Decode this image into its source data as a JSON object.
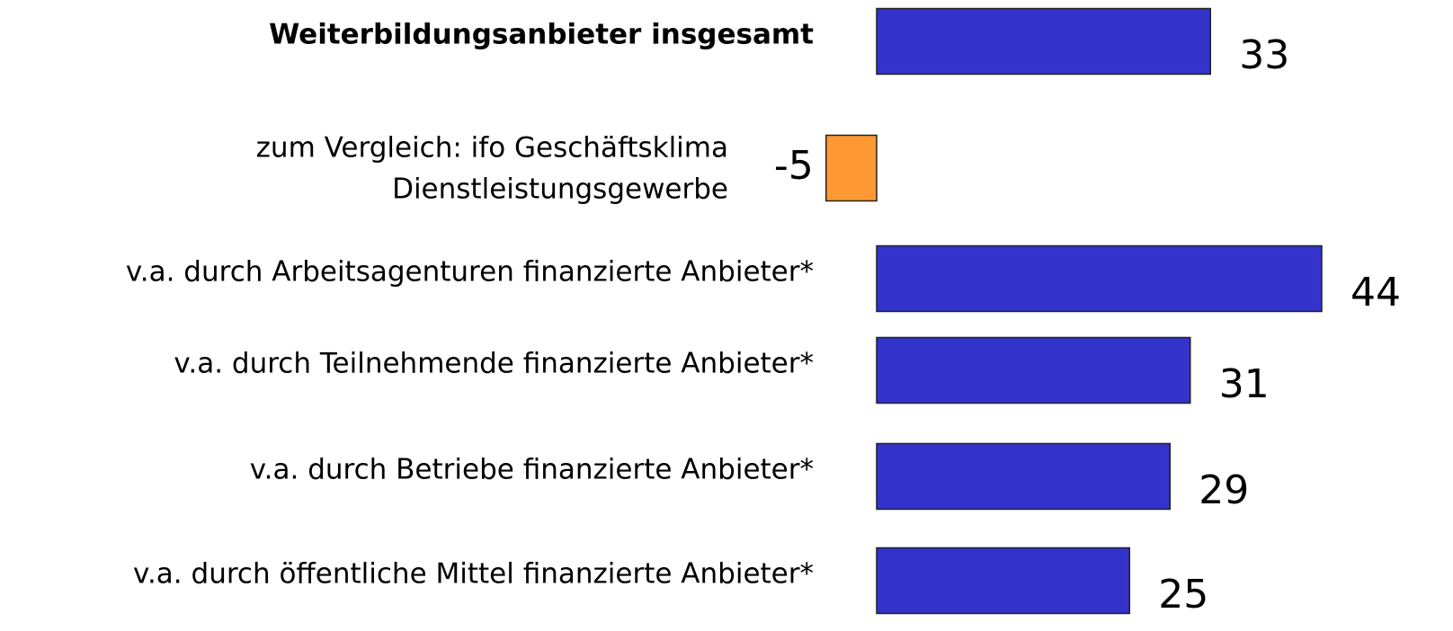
{
  "chart_data": {
    "type": "hbar",
    "categories": [
      "Weiterbildungsanbieter insgesamt",
      [
        "zum Vergleich: ifo Geschäftsklima",
        "Dienstleistungsgewerbe"
      ],
      "v.a. durch Arbeitsagenturen finanzierte Anbieter*",
      "v.a. durch Teilnehmende finanzierte Anbieter*",
      "v.a. durch Betriebe finanzierte Anbieter*",
      "v.a. durch öffentliche Mittel finanzierte Anbieter*"
    ],
    "values": [
      33,
      -5,
      44,
      31,
      29,
      25
    ],
    "colors": [
      "#3333cc",
      "#ff9933",
      "#3333cc",
      "#3333cc",
      "#3333cc",
      "#3333cc"
    ]
  }
}
